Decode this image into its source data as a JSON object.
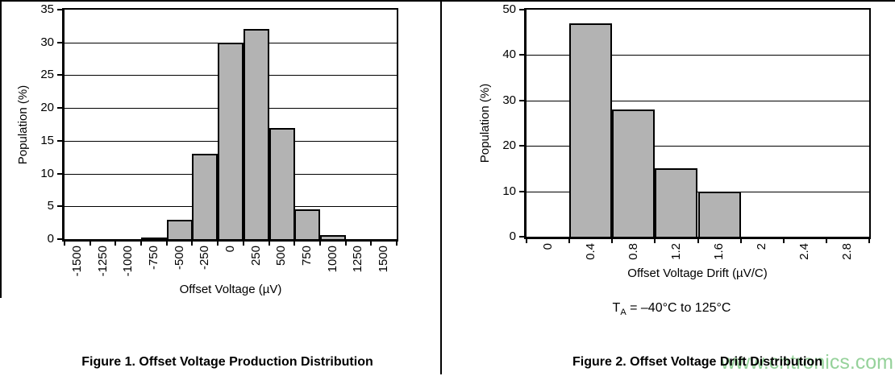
{
  "page": {
    "background": "#ffffff",
    "border_color": "#000000",
    "bar_fill_color": "#b3b3b3",
    "text_color": "#000000"
  },
  "watermark": {
    "text": "www.cntronics.com",
    "color": "#96d29b"
  },
  "chart_data": [
    {
      "type": "bar",
      "title": "",
      "caption": "Figure 1. Offset Voltage Production Distribution",
      "categories": [
        "-1500",
        "-1250",
        "-1000",
        "-750",
        "-500",
        "-250",
        "0",
        "250",
        "500",
        "750",
        "1000",
        "1250",
        "1500"
      ],
      "values": [
        0,
        0,
        0,
        0.3,
        3,
        13,
        30,
        32,
        17,
        4.5,
        0.6,
        0,
        0
      ],
      "xlabel": "Offset Voltage (µV)",
      "ylabel": "Population (%)",
      "ylim": [
        0,
        35
      ],
      "yticks": [
        0,
        5,
        10,
        15,
        20,
        25,
        30,
        35
      ],
      "grid": true,
      "legend": "none",
      "bar_color": "#b3b3b3"
    },
    {
      "type": "bar",
      "title": "",
      "caption": "Figure 2. Offset Voltage Drift Distribution",
      "categories": [
        "0",
        "0.4",
        "0.8",
        "1.2",
        "1.6",
        "2",
        "2.4",
        "2.8"
      ],
      "values": [
        0,
        47,
        28,
        15,
        10,
        0,
        0,
        0
      ],
      "xlabel": "Offset Voltage Drift (µV/C)",
      "ylabel": "Population (%)",
      "ylim": [
        0,
        50
      ],
      "yticks": [
        0,
        10,
        20,
        30,
        40,
        50
      ],
      "grid": true,
      "legend": "none",
      "bar_color": "#b3b3b3",
      "note": {
        "base": "T",
        "sub": "A",
        "rest": " = –40°C to 125°C"
      }
    }
  ]
}
